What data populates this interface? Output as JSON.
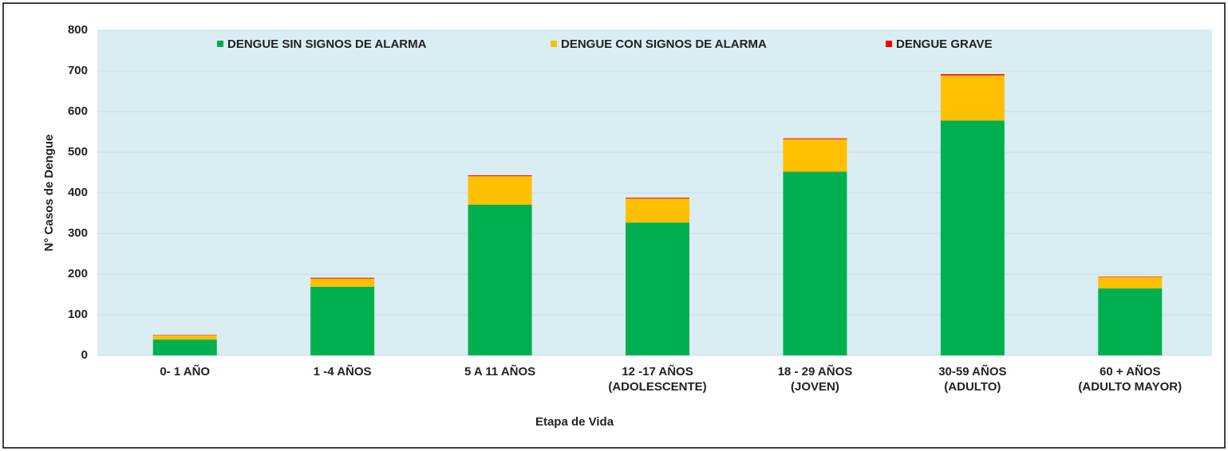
{
  "chart_data": {
    "type": "stacked_bar",
    "y_label": "N° Casos de Dengue",
    "x_label": "Etapa de Vida",
    "categories": [
      [
        "0- 1 AÑO"
      ],
      [
        "1 -4  AÑOS"
      ],
      [
        "5 A 11 AÑOS"
      ],
      [
        "12 -17 AÑOS",
        "(ADOLESCENTE)"
      ],
      [
        "18 - 29 AÑOS",
        "(JOVEN)"
      ],
      [
        "30-59 AÑOS",
        "(ADULTO)"
      ],
      [
        "60 + AÑOS",
        "(ADULTO MAYOR)"
      ]
    ],
    "series": [
      {
        "name": "DENGUE SIN SIGNOS DE ALARMA",
        "color": "#00b050",
        "values": [
          39,
          169,
          371,
          327,
          452,
          578,
          165
        ]
      },
      {
        "name": "DENGUE CON SIGNOS DE ALARMA",
        "color": "#ffc000",
        "values": [
          10,
          20,
          70,
          59,
          80,
          111,
          28
        ]
      },
      {
        "name": "DENGUE GRAVE",
        "color": "#ff0000",
        "values": [
          1,
          2,
          2,
          2,
          2,
          3,
          1
        ]
      }
    ],
    "ylim": [
      0,
      800
    ],
    "yticks": [
      0,
      100,
      200,
      300,
      400,
      500,
      600,
      700,
      800
    ],
    "grid": true
  }
}
